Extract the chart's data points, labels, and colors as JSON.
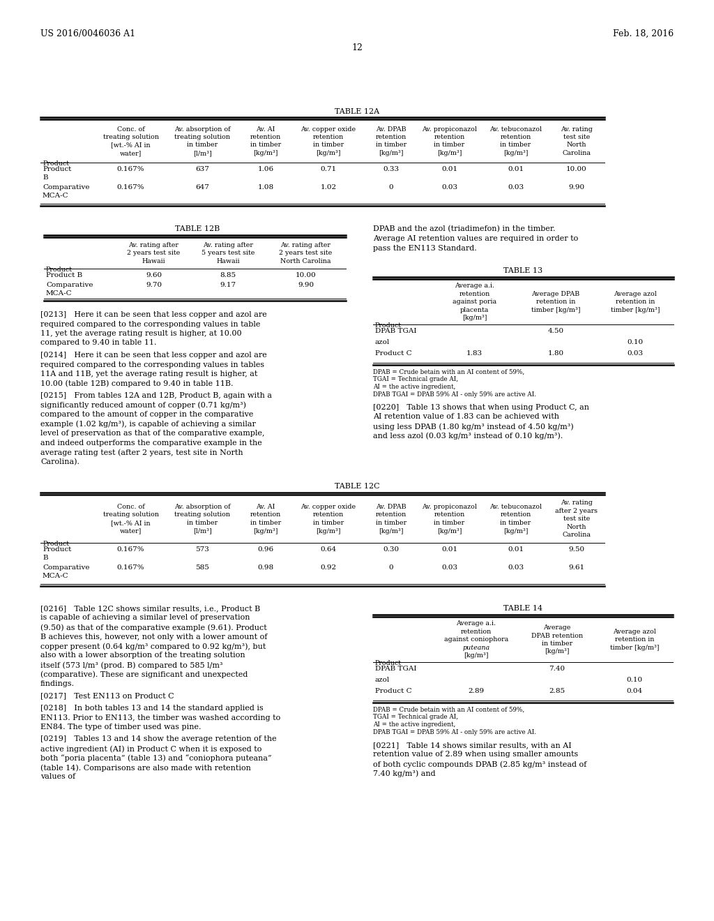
{
  "background_color": "#ffffff",
  "header_left": "US 2016/0046036 A1",
  "header_right": "Feb. 18, 2016",
  "page_number": "12",
  "table12a_title": "TABLE 12A",
  "table12a_headers": [
    "Product",
    "Conc. of\ntreating solution\n[wt.-% AI in\nwater]",
    "Av. absorption of\ntreating solution\nin timber\n[l/m³]",
    "Av. AI\nretention\nin timber\n[kg/m³]",
    "Av. copper oxide\nretention\nin timber\n[kg/m³]",
    "Av. DPAB\nretention\nin timber\n[kg/m³]",
    "Av. propiconazol\nretention\nin timber\n[kg/m³]",
    "Av. tebuconazol\nretention\nin timber\n[kg/m³]",
    "Av. rating\ntest site\nNorth\nCarolina"
  ],
  "table12a_rows": [
    [
      "Product\nB",
      "0.167%",
      "637",
      "1.06",
      "0.71",
      "0.33",
      "0.01",
      "0.01",
      "10.00"
    ],
    [
      "Comparative\nMCA-C",
      "0.167%",
      "647",
      "1.08",
      "1.02",
      "0",
      "0.03",
      "0.03",
      "9.90"
    ]
  ],
  "table12b_title": "TABLE 12B",
  "table12b_headers": [
    "Product",
    "Av. rating after\n2 years test site\nHawaii",
    "Av. rating after\n5 years test site\nHawaii",
    "Av. rating after\n2 years test site\nNorth Carolina"
  ],
  "table12b_rows": [
    [
      "Product B",
      "9.60",
      "8.85",
      "10.00"
    ],
    [
      "Comparative\nMCA-C",
      "9.70",
      "9.17",
      "9.90"
    ]
  ],
  "table13_title": "TABLE 13",
  "table13_headers": [
    "Product",
    "Average a.i.\nretention\nagainst poria\nplacenta\n[kg/m³]",
    "Average DPAB\nretention in\ntimber [kg/m³]",
    "Average azol\nretention in\ntimber [kg/m³]"
  ],
  "table13_rows": [
    [
      "DPAB TGAI",
      "",
      "4.50",
      ""
    ],
    [
      "azol",
      "",
      "",
      "0.10"
    ],
    [
      "Product C",
      "1.83",
      "1.80",
      "0.03"
    ]
  ],
  "table13_footnotes": [
    "DPAB = Crude betain with an AI content of 59%,",
    "TGAI = Technical grade AI,",
    "AI = the active ingredient,",
    "DPAB TGAI = DPAB 59% AI - only 59% are active AI."
  ],
  "table12c_title": "TABLE 12C",
  "table12c_headers": [
    "Product",
    "Conc. of\ntreating solution\n[wt.-% AI in\nwater]",
    "Av. absorption of\ntreating solution\nin timber\n[l/m³]",
    "Av. AI\nretention\nin timber\n[kg/m³]",
    "Av. copper oxide\nretention\nin timber\n[kg/m³]",
    "Av. DPAB\nretention\nin timber\n[kg/m³]",
    "Av. propiconazol\nretention\nin timber\n[kg/m³]",
    "Av. tebuconazol\nretention\nin timber\n[kg/m³]",
    "Av. rating\nafter 2 years\ntest site\nNorth\nCarolina"
  ],
  "table12c_rows": [
    [
      "Product\nB",
      "0.167%",
      "573",
      "0.96",
      "0.64",
      "0.30",
      "0.01",
      "0.01",
      "9.50"
    ],
    [
      "Comparative\nMCA-C",
      "0.167%",
      "585",
      "0.98",
      "0.92",
      "0",
      "0.03",
      "0.03",
      "9.61"
    ]
  ],
  "table14_title": "TABLE 14",
  "table14_headers": [
    "Product",
    "Average a.i.\nretention\nagainst coniophora\nputeana\n[kg/m³]",
    "Average\nDPAB retention\nin timber\n[kg/m³]",
    "Average azol\nretention in\ntimber [kg/m³]"
  ],
  "table14_rows": [
    [
      "DPAB TGAI",
      "",
      "7.40",
      ""
    ],
    [
      "azol",
      "",
      "",
      "0.10"
    ],
    [
      "Product C",
      "2.89",
      "2.85",
      "0.04"
    ]
  ],
  "table14_footnotes": [
    "DPAB = Crude betain with an AI content of 59%,",
    "TGAI = Technical grade AI,",
    "AI = the active ingredient,",
    "DPAB TGAI = DPAB 59% AI - only 59% are active AI."
  ],
  "para_0213": "[0213] Here it can be seen that less copper and azol are required compared to the corresponding values in table 11, yet the average rating result is higher, at 10.00 compared to 9.40 in table 11.",
  "para_0214": "[0214] Here it can be seen that less copper and azol are required compared to the corresponding values in tables 11A and 11B, yet the average rating result is higher, at 10.00 (table 12B) compared to 9.40 in table 11B.",
  "para_0215": "[0215] From tables 12A and 12B, Product B, again with a significantly reduced amount of copper (0.71 kg/m³) compared to the amount of copper in the comparative example (1.02 kg/m³), is capable of achieving a similar level of preservation as that of the comparative example, and indeed outperforms the comparative example in the average rating test (after 2 years, test site in North Carolina).",
  "para_right_top": "DPAB and the azol (triadimefon) in the timber. Average AI retention values are required in order to pass the EN113 Standard.",
  "para_0216": "[0216] Table 12C shows similar results, i.e., Product B is capable of achieving a similar level of preservation (9.50) as that of the comparative example (9.61). Product B achieves this, however, not only with a lower amount of copper present (0.64 kg/m³ compared to 0.92 kg/m³), but also with a lower absorption of the treating solution itself (573 l/m³ (prod. B) compared to 585 l/m³ (comparative). These are significant and unexpected findings.",
  "para_0217": "[0217] Test EN113 on Product C",
  "para_0218": "[0218] In both tables 13 and 14 the standard applied is EN113. Prior to EN113, the timber was washed according to EN84. The type of timber used was pine.",
  "para_0219": "[0219] Tables 13 and 14 show the average retention of the active ingredient (AI) in Product C when it is exposed to both “poria placenta” (table 13) and “coniophora puteana” (table 14). Comparisons are also made with retention values of",
  "para_0220": "[0220] Table 13 shows that when using Product C, an AI retention value of 1.83 can be achieved with using less DPAB (1.80 kg/m³ instead of 4.50 kg/m³) and less azol (0.03 kg/m³ instead of 0.10 kg/m³).",
  "para_0221": "[0221] Table 14 shows similar results, with an AI retention value of 2.89 when using smaller amounts of both cyclic compounds DPAB (2.85 kg/m³ instead of 7.40 kg/m³) and"
}
